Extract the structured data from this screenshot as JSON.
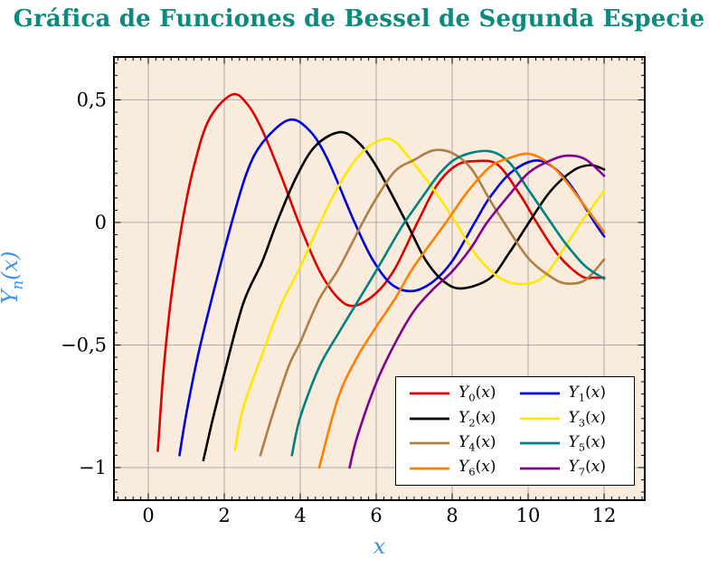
{
  "title": {
    "text": "Gráfica de Funciones de Bessel de Segunda Especie",
    "color": "#0D8A7E"
  },
  "axes": {
    "x": {
      "label": "x",
      "label_color": "#3E92E8",
      "min": -0.905,
      "max": 13.07,
      "major_step": 2,
      "minor_step": 0.2,
      "tick_labels": [
        {
          "v": 0,
          "t": "0"
        },
        {
          "v": 2,
          "t": "2"
        },
        {
          "v": 4,
          "t": "4"
        },
        {
          "v": 6,
          "t": "6"
        },
        {
          "v": 8,
          "t": "8"
        },
        {
          "v": 10,
          "t": "10"
        },
        {
          "v": 12,
          "t": "12"
        }
      ]
    },
    "y": {
      "label_base": "Y",
      "label_sub": "n",
      "label_rest": "(x)",
      "label_color": "#3E92E8",
      "min": -1.133,
      "max": 0.675,
      "major_step": 0.5,
      "minor_step": 0.05,
      "tick_labels": [
        {
          "v": 0.5,
          "t": "0,5"
        },
        {
          "v": 0,
          "t": "0"
        },
        {
          "v": -0.5,
          "t": "−0,5"
        },
        {
          "v": -1,
          "t": "−1"
        }
      ]
    }
  },
  "plot_style": {
    "bg": "#F9ECDC",
    "grid_color": "#ABABAB",
    "frame_color": "#000000",
    "tick_color": "#000000",
    "line_width": 2.6
  },
  "chart_data": {
    "type": "line",
    "title": "Gráfica de Funciones de Bessel de Segunda Especie",
    "xlabel": "x",
    "ylabel": "Y_n(x)",
    "xlim": [
      -0.905,
      13.07
    ],
    "ylim": [
      -1.133,
      0.675
    ],
    "grid": true,
    "legend_position": "south east",
    "series": [
      {
        "name": "Y_0(x)",
        "sub": "0",
        "color": "#E00000",
        "points": [
          [
            0.25,
            -0.932
          ],
          [
            0.4,
            -0.606
          ],
          [
            0.6,
            -0.309
          ],
          [
            0.894,
            0
          ],
          [
            1.2,
            0.228
          ],
          [
            1.6,
            0.42
          ],
          [
            2.197,
            0.521
          ],
          [
            2.6,
            0.484
          ],
          [
            3.0,
            0.377
          ],
          [
            3.5,
            0.189
          ],
          [
            3.958,
            0
          ],
          [
            4.5,
            -0.195
          ],
          [
            5.0,
            -0.309
          ],
          [
            5.43,
            -0.34
          ],
          [
            6.0,
            -0.288
          ],
          [
            6.5,
            -0.187
          ],
          [
            7.086,
            0
          ],
          [
            7.6,
            0.152
          ],
          [
            8.1,
            0.232
          ],
          [
            8.6,
            0.25
          ],
          [
            9.2,
            0.235
          ],
          [
            9.8,
            0.11
          ],
          [
            10.222,
            0
          ],
          [
            10.8,
            -0.135
          ],
          [
            11.4,
            -0.219
          ],
          [
            11.75,
            -0.225
          ],
          [
            12,
            -0.225
          ]
        ]
      },
      {
        "name": "Y_1(x)",
        "sub": "1",
        "color": "#0000E0",
        "points": [
          [
            0.82,
            -0.95
          ],
          [
            1.0,
            -0.781
          ],
          [
            1.3,
            -0.548
          ],
          [
            1.7,
            -0.294
          ],
          [
            2.197,
            0
          ],
          [
            2.6,
            0.206
          ],
          [
            3.0,
            0.324
          ],
          [
            3.68,
            0.417
          ],
          [
            4.2,
            0.382
          ],
          [
            4.7,
            0.264
          ],
          [
            5.43,
            0
          ],
          [
            5.9,
            -0.15
          ],
          [
            6.4,
            -0.252
          ],
          [
            6.95,
            -0.28
          ],
          [
            7.5,
            -0.241
          ],
          [
            8.0,
            -0.158
          ],
          [
            8.596,
            0
          ],
          [
            9.0,
            0.104
          ],
          [
            9.6,
            0.21
          ],
          [
            10.3,
            0.252
          ],
          [
            11.0,
            0.175
          ],
          [
            11.749,
            0
          ],
          [
            12,
            -0.057
          ]
        ]
      },
      {
        "name": "Y_2(x)",
        "sub": "2",
        "color": "#000000",
        "points": [
          [
            1.45,
            -0.97
          ],
          [
            1.7,
            -0.8
          ],
          [
            2.0,
            -0.617
          ],
          [
            2.5,
            -0.33
          ],
          [
            3.0,
            -0.16
          ],
          [
            3.384,
            0
          ],
          [
            3.9,
            0.186
          ],
          [
            4.4,
            0.312
          ],
          [
            5.03,
            0.368
          ],
          [
            5.5,
            0.331
          ],
          [
            6.0,
            0.23
          ],
          [
            6.794,
            0
          ],
          [
            7.3,
            -0.153
          ],
          [
            7.8,
            -0.243
          ],
          [
            8.28,
            -0.269
          ],
          [
            9.0,
            -0.227
          ],
          [
            9.5,
            -0.125
          ],
          [
            10.023,
            0
          ],
          [
            10.6,
            0.13
          ],
          [
            11.2,
            0.213
          ],
          [
            11.65,
            0.234
          ],
          [
            12,
            0.216
          ]
        ]
      },
      {
        "name": "Y_3(x)",
        "sub": "3",
        "color": "#FFE800",
        "points": [
          [
            2.28,
            -0.93
          ],
          [
            2.5,
            -0.756
          ],
          [
            3.0,
            -0.538
          ],
          [
            3.5,
            -0.335
          ],
          [
            4.0,
            -0.182
          ],
          [
            4.527,
            0
          ],
          [
            5.0,
            0.146
          ],
          [
            5.5,
            0.264
          ],
          [
            6.0,
            0.328
          ],
          [
            6.45,
            0.334
          ],
          [
            7.0,
            0.238
          ],
          [
            7.6,
            0.115
          ],
          [
            8.097,
            0
          ],
          [
            8.6,
            -0.127
          ],
          [
            9.2,
            -0.221
          ],
          [
            9.8,
            -0.252
          ],
          [
            10.4,
            -0.222
          ],
          [
            11.0,
            -0.092
          ],
          [
            11.396,
            0
          ],
          [
            12,
            0.129
          ]
        ]
      },
      {
        "name": "Y_4(x)",
        "sub": "4",
        "color": "#AF7E45",
        "points": [
          [
            2.95,
            -0.95
          ],
          [
            3.3,
            -0.77
          ],
          [
            3.7,
            -0.585
          ],
          [
            4.0,
            -0.489
          ],
          [
            4.5,
            -0.313
          ],
          [
            5.0,
            -0.192
          ],
          [
            5.645,
            0
          ],
          [
            6.0,
            0.098
          ],
          [
            6.5,
            0.21
          ],
          [
            7.0,
            0.255
          ],
          [
            7.5,
            0.294
          ],
          [
            8.0,
            0.283
          ],
          [
            8.5,
            0.22
          ],
          [
            9.0,
            0.09
          ],
          [
            9.362,
            0
          ],
          [
            10.0,
            -0.145
          ],
          [
            10.6,
            -0.222
          ],
          [
            11.0,
            -0.249
          ],
          [
            11.5,
            -0.235
          ],
          [
            12,
            -0.151
          ]
        ]
      },
      {
        "name": "Y_5(x)",
        "sub": "5",
        "color": "#008080",
        "points": [
          [
            3.78,
            -0.95
          ],
          [
            4.0,
            -0.795
          ],
          [
            4.5,
            -0.59
          ],
          [
            5.0,
            -0.454
          ],
          [
            5.5,
            -0.326
          ],
          [
            6.0,
            -0.197
          ],
          [
            6.5,
            -0.063
          ],
          [
            6.747,
            0
          ],
          [
            7.2,
            0.1
          ],
          [
            7.7,
            0.205
          ],
          [
            8.2,
            0.268
          ],
          [
            8.95,
            0.291
          ],
          [
            9.5,
            0.245
          ],
          [
            10.0,
            0.135
          ],
          [
            10.597,
            0
          ],
          [
            11.0,
            -0.089
          ],
          [
            11.5,
            -0.178
          ],
          [
            12,
            -0.23
          ]
        ]
      },
      {
        "name": "Y_6(x)",
        "sub": "6",
        "color": "#FF8000",
        "points": [
          [
            4.5,
            -1.0
          ],
          [
            5.0,
            -0.715
          ],
          [
            5.5,
            -0.55
          ],
          [
            6.0,
            -0.426
          ],
          [
            6.5,
            -0.31
          ],
          [
            7.0,
            -0.179
          ],
          [
            7.838,
            0
          ],
          [
            8.4,
            0.124
          ],
          [
            9.0,
            0.227
          ],
          [
            9.5,
            0.262
          ],
          [
            10.0,
            0.28
          ],
          [
            10.5,
            0.246
          ],
          [
            11.0,
            0.167
          ],
          [
            11.81,
            0
          ],
          [
            12,
            -0.04
          ]
        ]
      },
      {
        "name": "Y_7(x)",
        "sub": "7",
        "color": "#800090",
        "points": [
          [
            5.3,
            -1.0
          ],
          [
            5.5,
            -0.875
          ],
          [
            6.0,
            -0.655
          ],
          [
            6.5,
            -0.492
          ],
          [
            7.0,
            -0.36
          ],
          [
            7.5,
            -0.272
          ],
          [
            8.0,
            -0.2
          ],
          [
            8.5,
            -0.103
          ],
          [
            8.92,
            0
          ],
          [
            9.5,
            0.112
          ],
          [
            10.0,
            0.201
          ],
          [
            10.5,
            0.247
          ],
          [
            11.0,
            0.272
          ],
          [
            11.5,
            0.258
          ],
          [
            12,
            0.19
          ]
        ]
      }
    ]
  }
}
